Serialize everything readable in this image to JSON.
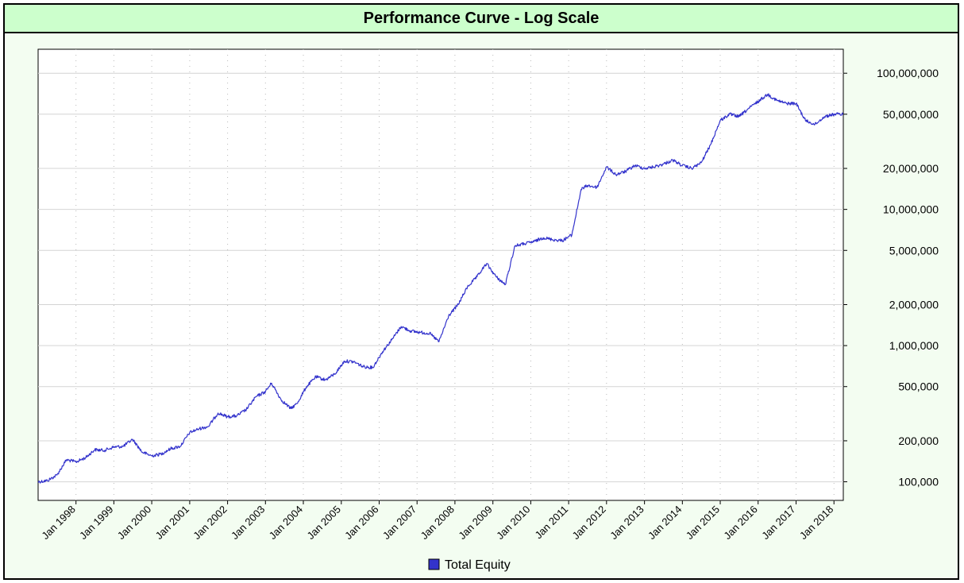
{
  "chart_data": {
    "type": "line",
    "title": "Performance Curve - Log Scale",
    "y_scale": "log",
    "ylim": [
      73000,
      150000000
    ],
    "xlim": [
      "1997-01-01",
      "2018-04-01"
    ],
    "grid": true,
    "legend": "bottom-center",
    "x_ticks": [
      "Jan 1998",
      "Jan 1999",
      "Jan 2000",
      "Jan 2001",
      "Jan 2002",
      "Jan 2003",
      "Jan 2004",
      "Jan 2005",
      "Jan 2006",
      "Jan 2007",
      "Jan 2008",
      "Jan 2009",
      "Jan 2010",
      "Jan 2011",
      "Jan 2012",
      "Jan 2013",
      "Jan 2014",
      "Jan 2015",
      "Jan 2016",
      "Jan 2017",
      "Jan 2018"
    ],
    "x_tick_dates": [
      "1998-01-01",
      "1999-01-01",
      "2000-01-01",
      "2001-01-01",
      "2002-01-01",
      "2003-01-01",
      "2004-01-01",
      "2005-01-01",
      "2006-01-01",
      "2007-01-01",
      "2008-01-01",
      "2009-01-01",
      "2010-01-01",
      "2011-01-01",
      "2012-01-01",
      "2013-01-01",
      "2014-01-01",
      "2015-01-01",
      "2016-01-01",
      "2017-01-01",
      "2018-01-01"
    ],
    "y_ticks": [
      {
        "value": 100000,
        "label": "100,000"
      },
      {
        "value": 200000,
        "label": "200,000"
      },
      {
        "value": 500000,
        "label": "500,000"
      },
      {
        "value": 1000000,
        "label": "1,000,000"
      },
      {
        "value": 2000000,
        "label": "2,000,000"
      },
      {
        "value": 5000000,
        "label": "5,000,000"
      },
      {
        "value": 10000000,
        "label": "10,000,000"
      },
      {
        "value": 20000000,
        "label": "20,000,000"
      },
      {
        "value": 50000000,
        "label": "50,000,000"
      },
      {
        "value": 100000000,
        "label": "100,000,000"
      }
    ],
    "series": [
      {
        "name": "Total Equity",
        "color": "#3333cc",
        "x": [
          "1997-01-01",
          "1997-04-01",
          "1997-07-01",
          "1997-10-01",
          "1998-01-01",
          "1998-04-01",
          "1998-07-01",
          "1998-10-01",
          "1999-01-01",
          "1999-04-01",
          "1999-07-01",
          "1999-10-01",
          "2000-01-01",
          "2000-04-01",
          "2000-07-01",
          "2000-10-01",
          "2001-01-01",
          "2001-04-01",
          "2001-07-01",
          "2001-10-01",
          "2002-01-01",
          "2002-04-01",
          "2002-07-01",
          "2002-10-01",
          "2003-01-01",
          "2003-03-01",
          "2003-06-01",
          "2003-09-01",
          "2003-11-01",
          "2004-02-01",
          "2004-05-01",
          "2004-08-01",
          "2004-11-01",
          "2005-02-01",
          "2005-05-01",
          "2005-08-01",
          "2005-11-01",
          "2006-02-01",
          "2006-05-01",
          "2006-08-01",
          "2006-11-01",
          "2007-02-01",
          "2007-05-01",
          "2007-08-01",
          "2007-11-01",
          "2008-02-01",
          "2008-05-01",
          "2008-08-01",
          "2008-11-01",
          "2009-02-01",
          "2009-05-01",
          "2009-08-01",
          "2009-11-01",
          "2010-02-01",
          "2010-05-01",
          "2010-08-01",
          "2010-11-01",
          "2011-02-01",
          "2011-05-01",
          "2011-07-01",
          "2011-10-01",
          "2012-01-01",
          "2012-04-01",
          "2012-07-01",
          "2012-10-01",
          "2013-01-01",
          "2013-04-01",
          "2013-07-01",
          "2013-10-01",
          "2014-01-01",
          "2014-04-01",
          "2014-07-01",
          "2014-10-01",
          "2015-01-01",
          "2015-04-01",
          "2015-07-01",
          "2015-10-01",
          "2016-01-01",
          "2016-04-01",
          "2016-07-01",
          "2016-10-01",
          "2017-01-01",
          "2017-04-01",
          "2017-07-01",
          "2017-10-01",
          "2018-01-01",
          "2018-04-01"
        ],
        "y": [
          100000,
          102000,
          112000,
          145000,
          140000,
          150000,
          172000,
          170000,
          180000,
          182000,
          205000,
          165000,
          155000,
          160000,
          175000,
          182000,
          230000,
          245000,
          255000,
          320000,
          300000,
          305000,
          340000,
          420000,
          460000,
          530000,
          400000,
          345000,
          375000,
          500000,
          590000,
          560000,
          620000,
          770000,
          760000,
          700000,
          690000,
          900000,
          1100000,
          1380000,
          1280000,
          1250000,
          1230000,
          1070000,
          1650000,
          2000000,
          2700000,
          3200000,
          4000000,
          3200000,
          2800000,
          5400000,
          5600000,
          5800000,
          6200000,
          6000000,
          5900000,
          6500000,
          14000000,
          15000000,
          14500000,
          20500000,
          18000000,
          19000000,
          21000000,
          20000000,
          20500000,
          21500000,
          23000000,
          21000000,
          20000000,
          22000000,
          30000000,
          45000000,
          50000000,
          48000000,
          55000000,
          62000000,
          70000000,
          63000000,
          60000000,
          60000000,
          45000000,
          42000000,
          48000000,
          50000000,
          50000000
        ]
      }
    ]
  }
}
